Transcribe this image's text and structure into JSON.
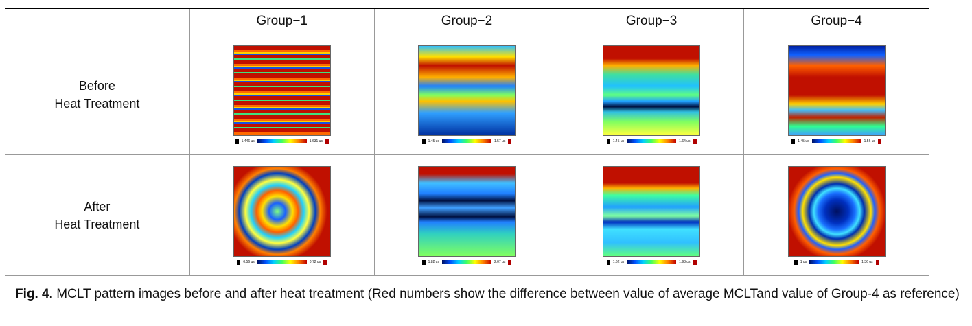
{
  "table": {
    "header": [
      "Group−1",
      "Group−2",
      "Group−3",
      "Group−4"
    ],
    "rows": [
      {
        "label": [
          "Before",
          "Heat Treatment"
        ],
        "cells": [
          {
            "min": "1.446 us",
            "max": "1.631 us"
          },
          {
            "min": "1.45 us",
            "max": "1.57 us"
          },
          {
            "min": "1.45 us",
            "max": "1.64 us"
          },
          {
            "min": "1.45 us",
            "max": "1.56 us"
          }
        ]
      },
      {
        "label": [
          "After",
          "Heat Treatment"
        ],
        "cells": [
          {
            "min": "0.56 us",
            "max": "0.72 us"
          },
          {
            "min": "1.82 us",
            "max": "2.07 us"
          },
          {
            "min": "1.62 us",
            "max": "1.93 us"
          },
          {
            "min": "1 us",
            "max": "1.36 us"
          }
        ]
      }
    ]
  },
  "caption": {
    "label": "Fig. 4.",
    "text": "MCLT pattern images before and after heat treatment (Red numbers show the difference between value of average MCLTand value of Group-4 as reference)"
  }
}
